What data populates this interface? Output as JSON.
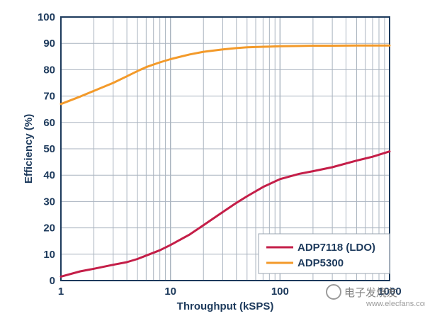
{
  "chart_data": {
    "type": "line",
    "xscale": "log",
    "xlabel": "Throughput (kSPS)",
    "ylabel": "Efficiency (%)",
    "xlim": [
      1,
      1000
    ],
    "ylim": [
      0,
      100
    ],
    "x_ticks": [
      1,
      10,
      100,
      1000
    ],
    "x_tick_labels": [
      "1",
      "10",
      "100",
      "1000"
    ],
    "y_ticks": [
      0,
      10,
      20,
      30,
      40,
      50,
      60,
      70,
      80,
      90,
      100
    ],
    "y_tick_labels": [
      "0",
      "10",
      "20",
      "30",
      "40",
      "50",
      "60",
      "70",
      "80",
      "90",
      "100"
    ],
    "grid": true,
    "legend_position": "bottom-right",
    "series": [
      {
        "name": "ADP7118 (LDO)",
        "color": "#c41e48",
        "x": [
          1,
          1.5,
          2,
          3,
          4,
          5,
          6,
          8,
          10,
          15,
          20,
          30,
          40,
          50,
          70,
          100,
          150,
          200,
          300,
          500,
          700,
          1000
        ],
        "y": [
          1.5,
          3.5,
          4.5,
          6,
          7,
          8.2,
          9.5,
          11.5,
          13.5,
          17.5,
          21,
          26,
          29.5,
          32,
          35.5,
          38.5,
          40.5,
          41.5,
          43,
          45.5,
          47,
          49
        ]
      },
      {
        "name": "ADP5300",
        "color": "#f39a2a",
        "x": [
          1,
          1.5,
          2,
          3,
          4,
          5,
          6,
          8,
          10,
          15,
          20,
          30,
          40,
          50,
          70,
          100,
          150,
          200,
          300,
          500,
          700,
          1000
        ],
        "y": [
          67,
          69.8,
          72,
          75,
          77.5,
          79.5,
          81,
          82.8,
          84,
          85.8,
          86.8,
          87.7,
          88.2,
          88.5,
          88.7,
          88.9,
          89,
          89.1,
          89.1,
          89.2,
          89.2,
          89.2
        ]
      }
    ]
  },
  "watermark": {
    "text": "电子发烧友",
    "url": "www.elecfans.com"
  }
}
